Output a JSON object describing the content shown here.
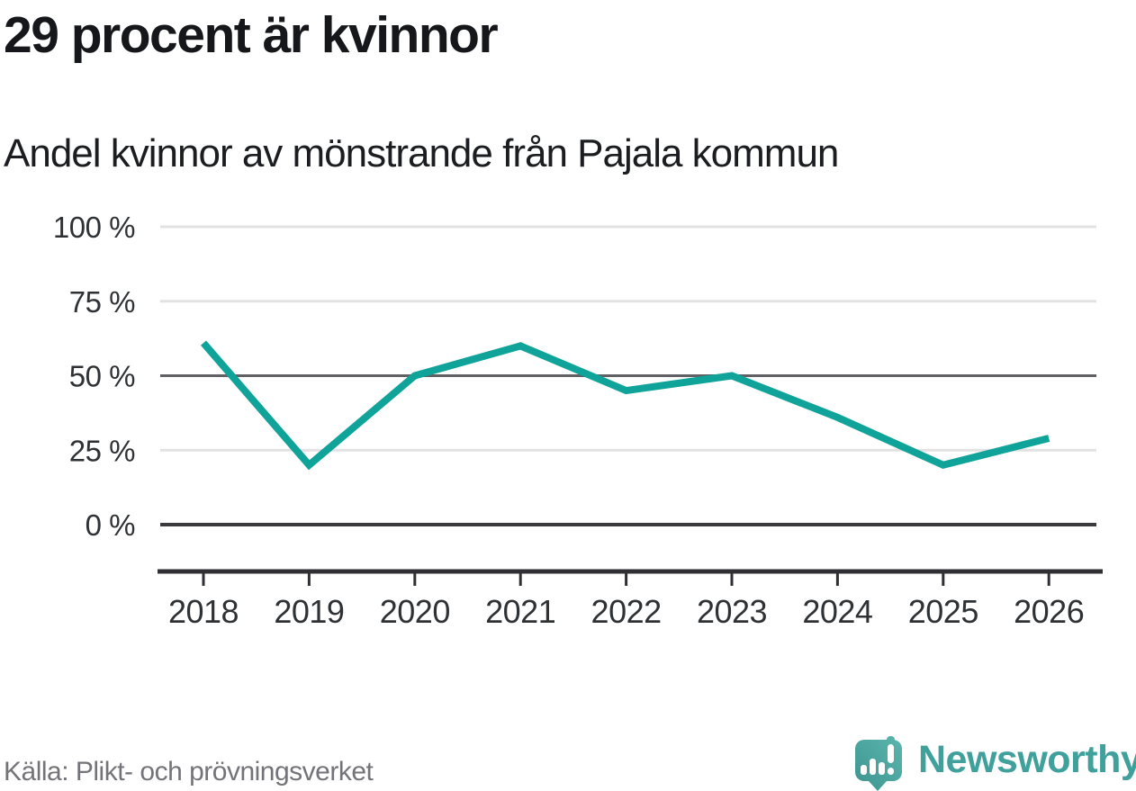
{
  "chart_data": {
    "type": "line",
    "title": "29 procent är kvinnor",
    "subtitle": "Andel kvinnor av mönstrande från Pajala kommun",
    "series_name": "Andel kvinnor av mönstrande",
    "categories": [
      "2018",
      "2019",
      "2020",
      "2021",
      "2022",
      "2023",
      "2024",
      "2025",
      "2026"
    ],
    "values": [
      61,
      20,
      50,
      60,
      45,
      50,
      36,
      20,
      29
    ],
    "unit": "%",
    "ylim": [
      0,
      100
    ],
    "yticks": [
      {
        "label": "100 %",
        "value": 100
      },
      {
        "label": "75 %",
        "value": 75
      },
      {
        "label": "50 %",
        "value": 50
      },
      {
        "label": "25 %",
        "value": 25
      },
      {
        "label": "0 %",
        "value": 0
      }
    ],
    "grid": "horizontal",
    "legend": "none"
  },
  "footer": {
    "source": "Källa: Plikt- och prövningsverket",
    "brand": "Newsworthy"
  },
  "icons": {
    "brand_logo": "bar-chart-speech-bubble-icon"
  },
  "colors": {
    "line": "#10a399",
    "brand": "#3fa09c",
    "logo_dark": "#3e948f",
    "logo_light": "#5ab5ad",
    "grid_light": "#e2e2e2",
    "grid_mid": "#606065",
    "grid_zero": "#3a3a3e",
    "axis": "#303034",
    "title": "#15171a",
    "subtitle": "#1b1d20",
    "tick_text": "#2f3235",
    "source_text": "#737379"
  }
}
